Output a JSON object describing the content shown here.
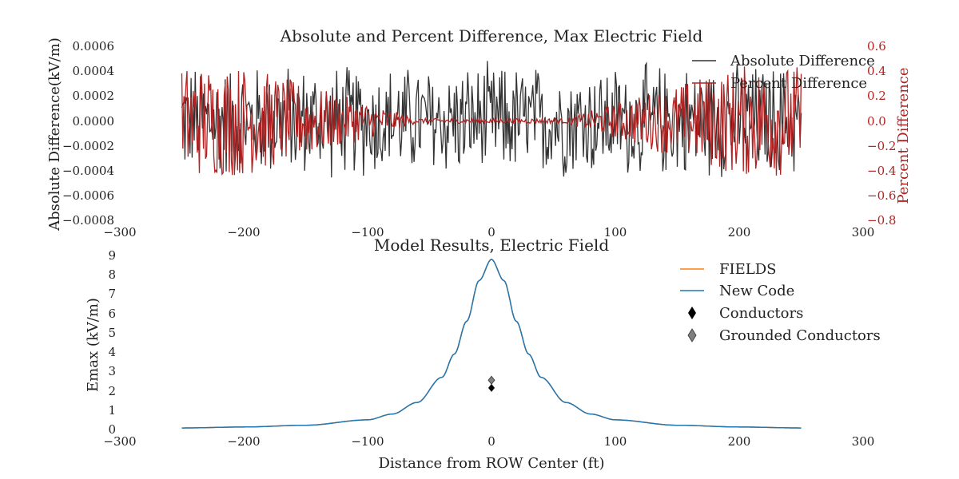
{
  "chart_data": [
    {
      "type": "line",
      "title": "Absolute and Percent Difference, Max Electric Field",
      "xlabel": "",
      "ylabel": "Absolute Difference(kV/m)",
      "y2label": "Percent Difference",
      "xlim": [
        -300,
        300
      ],
      "ylim": [
        -0.0008,
        0.0006
      ],
      "y2lim": [
        -0.8,
        0.6
      ],
      "x_ticks": [
        "−300",
        "−200",
        "−100",
        "0",
        "100",
        "200",
        "300"
      ],
      "y_ticks": [
        "0.0006",
        "0.0004",
        "0.0002",
        "0.0000",
        "−0.0002",
        "−0.0004",
        "−0.0006",
        "−0.0008"
      ],
      "y2_ticks": [
        "0.6",
        "0.4",
        "0.2",
        "0.0",
        "−0.2",
        "−0.4",
        "−0.6",
        "−0.8"
      ],
      "grid": false,
      "legend_position": "top-right",
      "x_range": [
        -250,
        250
      ],
      "series": [
        {
          "name": "Absolute Difference",
          "axis": "left",
          "color": "#333333",
          "amplitude": 0.0005,
          "pattern": "oscillating rounding error, roughly uniform across the range"
        },
        {
          "name": "Percent Difference",
          "axis": "right",
          "color": "#b22222",
          "amplitude_edges": 0.45,
          "amplitude_center": 0.02,
          "pattern": "large at edges, near zero around center"
        }
      ]
    },
    {
      "type": "line",
      "title": "Model Results, Electric Field",
      "xlabel": "Distance from ROW Center (ft)",
      "ylabel": "Emax (kV/m)",
      "xlim": [
        -300,
        300
      ],
      "ylim": [
        0,
        9
      ],
      "x_ticks": [
        "−300",
        "−200",
        "−100",
        "0",
        "100",
        "200",
        "300"
      ],
      "y_ticks": [
        "9",
        "8",
        "7",
        "6",
        "5",
        "4",
        "3",
        "2",
        "1",
        "0"
      ],
      "grid": false,
      "legend_position": "top-right",
      "series": [
        {
          "name": "FIELDS",
          "color": "#ff7f0e",
          "x": [
            -250,
            -200,
            -150,
            -100,
            -80,
            -60,
            -40,
            -30,
            -20,
            -10,
            0,
            10,
            20,
            30,
            40,
            60,
            80,
            100,
            150,
            200,
            250
          ],
          "y": [
            0.08,
            0.13,
            0.22,
            0.5,
            0.8,
            1.4,
            2.7,
            3.9,
            5.6,
            7.7,
            8.8,
            7.7,
            5.6,
            3.9,
            2.7,
            1.4,
            0.8,
            0.5,
            0.22,
            0.13,
            0.08
          ]
        },
        {
          "name": "New Code",
          "color": "#1f77b4",
          "x": [
            -250,
            -200,
            -150,
            -100,
            -80,
            -60,
            -40,
            -30,
            -20,
            -10,
            0,
            10,
            20,
            30,
            40,
            60,
            80,
            100,
            150,
            200,
            250
          ],
          "y": [
            0.08,
            0.13,
            0.22,
            0.5,
            0.8,
            1.4,
            2.7,
            3.9,
            5.6,
            7.7,
            8.8,
            7.7,
            5.6,
            3.9,
            2.7,
            1.4,
            0.8,
            0.5,
            0.22,
            0.13,
            0.08
          ]
        },
        {
          "name": "Conductors",
          "marker": "diamond",
          "color": "#000000",
          "x": [
            0
          ],
          "y": [
            2.15
          ]
        },
        {
          "name": "Grounded Conductors",
          "marker": "diamond",
          "color": "#808080",
          "x": [
            0
          ],
          "y": [
            2.55
          ]
        }
      ]
    }
  ]
}
